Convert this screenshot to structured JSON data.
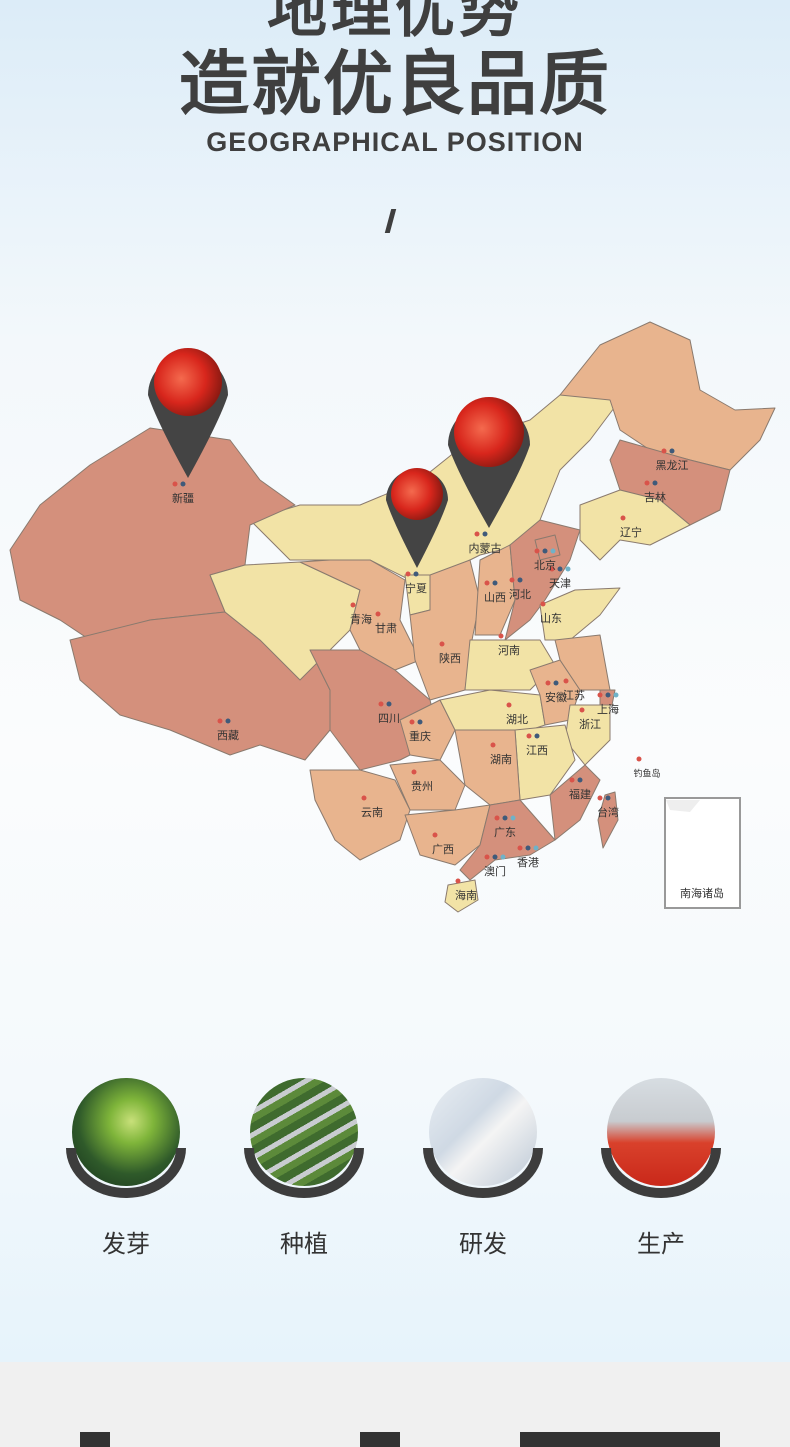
{
  "header": {
    "title_cut": "地理优势",
    "title": "造就优良品质",
    "subtitle": "GEOGRAPHICAL POSITION"
  },
  "map": {
    "colors": {
      "dark": "#d4907c",
      "mid": "#e8b48e",
      "light": "#f2e3a6",
      "pin": "#444444",
      "dot_red": "#d9534a",
      "dot_navy": "#3f5a7a",
      "dot_blue": "#6fb2c8"
    },
    "regions": [
      "新疆",
      "西藏",
      "青海",
      "甘肃",
      "宁夏",
      "内蒙古",
      "陕西",
      "山西",
      "河北",
      "北京",
      "天津",
      "辽宁",
      "吉林",
      "黑龙江",
      "山东",
      "河南",
      "四川",
      "重庆",
      "湖北",
      "安徽",
      "江苏",
      "上海",
      "浙江",
      "江西",
      "湖南",
      "贵州",
      "云南",
      "广西",
      "广东",
      "福建",
      "台湾",
      "香港",
      "澳门",
      "海南",
      "钓鱼岛"
    ],
    "inset_label": "南海诸岛",
    "pins": [
      "新疆",
      "宁夏",
      "内蒙古"
    ]
  },
  "stages": [
    {
      "label": "发芽",
      "icon": "sprout-photo"
    },
    {
      "label": "种植",
      "icon": "field-photo"
    },
    {
      "label": "研发",
      "icon": "lab-photo"
    },
    {
      "label": "生产",
      "icon": "factory-photo"
    }
  ]
}
